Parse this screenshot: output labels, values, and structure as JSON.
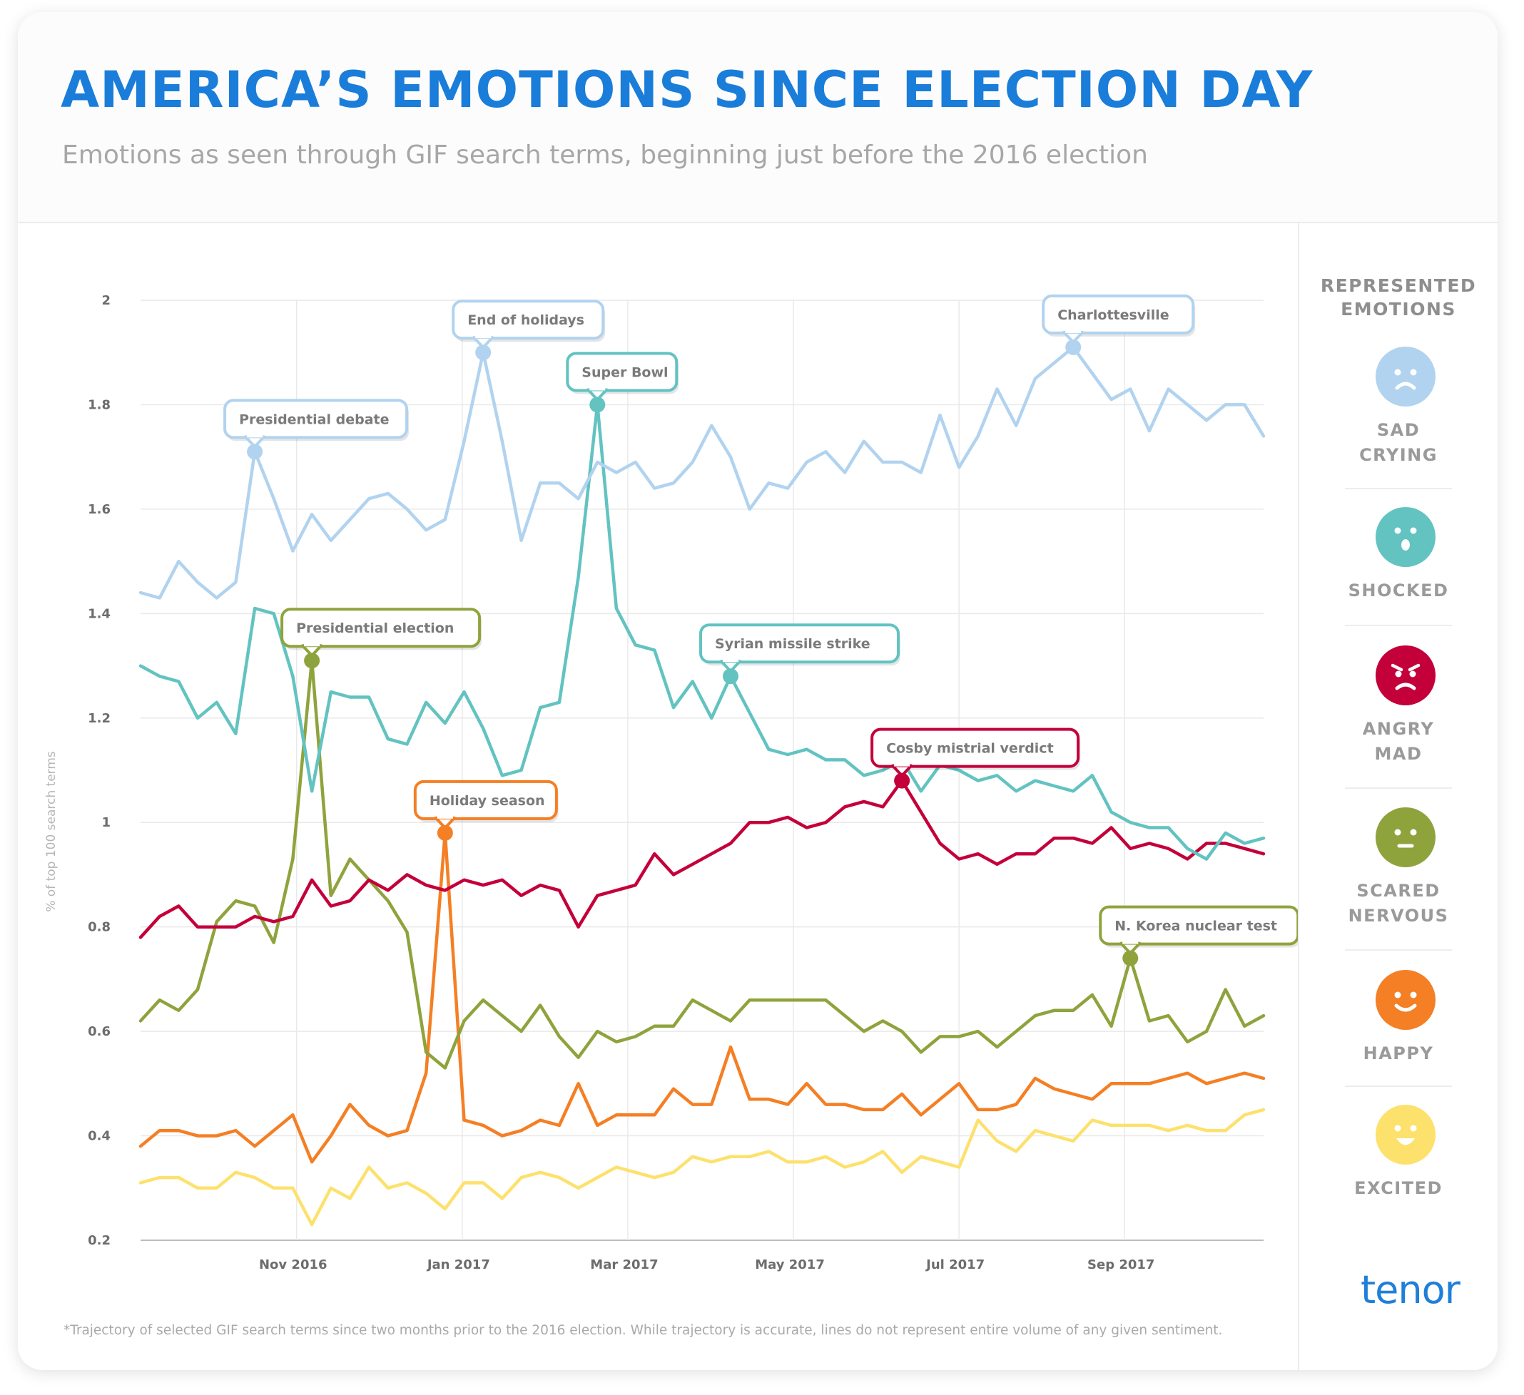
{
  "title": "AMERICA’S EMOTIONS SINCE ELECTION DAY",
  "subtitle": "Emotions as seen through GIF search terms, beginning just before the 2016 election",
  "footnote": "*Trajectory of selected GIF search terms since two months prior to the 2016 election. While trajectory is accurate, lines do not represent entire volume of any given sentiment.",
  "brand": "tenor",
  "legend": {
    "title_lines": [
      "REPRESENTED",
      "EMOTIONS"
    ],
    "items": [
      {
        "lines": [
          "SAD",
          "CRYING"
        ],
        "color": "#b1d3ef",
        "face": "sad"
      },
      {
        "lines": [
          "SHOCKED"
        ],
        "color": "#62c3c1",
        "face": "shocked"
      },
      {
        "lines": [
          "ANGRY",
          "MAD"
        ],
        "color": "#c4003a",
        "face": "angry"
      },
      {
        "lines": [
          "SCARED",
          "NERVOUS"
        ],
        "color": "#8fa33d",
        "face": "neutral"
      },
      {
        "lines": [
          "HAPPY"
        ],
        "color": "#f47f24",
        "face": "happy"
      },
      {
        "lines": [
          "EXCITED"
        ],
        "color": "#fde16d",
        "face": "excited"
      }
    ]
  },
  "chart_data": {
    "type": "line",
    "ylabel": "% of top 100 search terms",
    "xlabel": "",
    "ylim": [
      0.2,
      2
    ],
    "yticks": [
      "2",
      "1.8",
      "1.6",
      "1.4",
      "1.2",
      "1",
      "0.8",
      "0.6",
      "0.4",
      "0.2"
    ],
    "xticks": [
      {
        "label": "Nov 2016",
        "x": 8.2
      },
      {
        "label": "Jan 2017",
        "x": 16.9
      },
      {
        "label": "Mar 2017",
        "x": 25.6
      },
      {
        "label": "May 2017",
        "x": 34.3
      },
      {
        "label": "Jul 2017",
        "x": 43.0
      },
      {
        "label": "Sep 2017",
        "x": 51.7
      }
    ],
    "grid": true,
    "series": [
      {
        "name": "SAD CRYING",
        "color": "#b1d3ef",
        "values": [
          1.44,
          1.43,
          1.5,
          1.46,
          1.43,
          1.46,
          1.71,
          1.62,
          1.52,
          1.59,
          1.54,
          1.58,
          1.62,
          1.63,
          1.6,
          1.56,
          1.58,
          1.73,
          1.9,
          1.73,
          1.54,
          1.65,
          1.65,
          1.62,
          1.69,
          1.67,
          1.69,
          1.64,
          1.65,
          1.69,
          1.76,
          1.7,
          1.6,
          1.65,
          1.64,
          1.69,
          1.71,
          1.67,
          1.73,
          1.69,
          1.69,
          1.67,
          1.78,
          1.68,
          1.74,
          1.83,
          1.76,
          1.85,
          1.88,
          1.91,
          1.86,
          1.81,
          1.83,
          1.75,
          1.83,
          1.8,
          1.77,
          1.8,
          1.8,
          1.74
        ]
      },
      {
        "name": "SHOCKED",
        "color": "#62c3c1",
        "values": [
          1.3,
          1.28,
          1.27,
          1.2,
          1.23,
          1.17,
          1.41,
          1.4,
          1.28,
          1.06,
          1.25,
          1.24,
          1.24,
          1.16,
          1.15,
          1.23,
          1.19,
          1.25,
          1.18,
          1.09,
          1.1,
          1.22,
          1.23,
          1.47,
          1.8,
          1.41,
          1.34,
          1.33,
          1.22,
          1.27,
          1.2,
          1.28,
          1.21,
          1.14,
          1.13,
          1.14,
          1.12,
          1.12,
          1.09,
          1.1,
          1.12,
          1.06,
          1.11,
          1.1,
          1.08,
          1.09,
          1.06,
          1.08,
          1.07,
          1.06,
          1.09,
          1.02,
          1.0,
          0.99,
          0.99,
          0.95,
          0.93,
          0.98,
          0.96,
          0.97
        ]
      },
      {
        "name": "ANGRY MAD",
        "color": "#c4003a",
        "values": [
          0.78,
          0.82,
          0.84,
          0.8,
          0.8,
          0.8,
          0.82,
          0.81,
          0.82,
          0.89,
          0.84,
          0.85,
          0.89,
          0.87,
          0.9,
          0.88,
          0.87,
          0.89,
          0.88,
          0.89,
          0.86,
          0.88,
          0.87,
          0.8,
          0.86,
          0.87,
          0.88,
          0.94,
          0.9,
          0.92,
          0.94,
          0.96,
          1.0,
          1.0,
          1.01,
          0.99,
          1.0,
          1.03,
          1.04,
          1.03,
          1.08,
          1.02,
          0.96,
          0.93,
          0.94,
          0.92,
          0.94,
          0.94,
          0.97,
          0.97,
          0.96,
          0.99,
          0.95,
          0.96,
          0.95,
          0.93,
          0.96,
          0.96,
          0.95,
          0.94
        ]
      },
      {
        "name": "SCARED NERVOUS",
        "color": "#8fa33d",
        "values": [
          0.62,
          0.66,
          0.64,
          0.68,
          0.81,
          0.85,
          0.84,
          0.77,
          0.93,
          1.31,
          0.86,
          0.93,
          0.89,
          0.85,
          0.79,
          0.56,
          0.53,
          0.62,
          0.66,
          0.63,
          0.6,
          0.65,
          0.59,
          0.55,
          0.6,
          0.58,
          0.59,
          0.61,
          0.61,
          0.66,
          0.64,
          0.62,
          0.66,
          0.66,
          0.66,
          0.66,
          0.66,
          0.63,
          0.6,
          0.62,
          0.6,
          0.56,
          0.59,
          0.59,
          0.6,
          0.57,
          0.6,
          0.63,
          0.64,
          0.64,
          0.67,
          0.61,
          0.74,
          0.62,
          0.63,
          0.58,
          0.6,
          0.68,
          0.61,
          0.63
        ]
      },
      {
        "name": "HAPPY",
        "color": "#f47f24",
        "values": [
          0.38,
          0.41,
          0.41,
          0.4,
          0.4,
          0.41,
          0.38,
          0.41,
          0.44,
          0.35,
          0.4,
          0.46,
          0.42,
          0.4,
          0.41,
          0.52,
          0.98,
          0.43,
          0.42,
          0.4,
          0.41,
          0.43,
          0.42,
          0.5,
          0.42,
          0.44,
          0.44,
          0.44,
          0.49,
          0.46,
          0.46,
          0.57,
          0.47,
          0.47,
          0.46,
          0.5,
          0.46,
          0.46,
          0.45,
          0.45,
          0.48,
          0.44,
          0.47,
          0.5,
          0.45,
          0.45,
          0.46,
          0.51,
          0.49,
          0.48,
          0.47,
          0.5,
          0.5,
          0.5,
          0.51,
          0.52,
          0.5,
          0.51,
          0.52,
          0.51
        ]
      },
      {
        "name": "EXCITED",
        "color": "#fde16d",
        "values": [
          0.31,
          0.32,
          0.32,
          0.3,
          0.3,
          0.33,
          0.32,
          0.3,
          0.3,
          0.23,
          0.3,
          0.28,
          0.34,
          0.3,
          0.31,
          0.29,
          0.26,
          0.31,
          0.31,
          0.28,
          0.32,
          0.33,
          0.32,
          0.3,
          0.32,
          0.34,
          0.33,
          0.32,
          0.33,
          0.36,
          0.35,
          0.36,
          0.36,
          0.37,
          0.35,
          0.35,
          0.36,
          0.34,
          0.35,
          0.37,
          0.33,
          0.36,
          0.35,
          0.34,
          0.43,
          0.39,
          0.37,
          0.41,
          0.4,
          0.39,
          0.43,
          0.42,
          0.42,
          0.42,
          0.41,
          0.42,
          0.41,
          0.41,
          0.44,
          0.45
        ]
      }
    ],
    "annotations": [
      {
        "text": "Presidential debate",
        "series": "SAD CRYING",
        "x": 6,
        "y": 1.71,
        "color": "#b1d3ef"
      },
      {
        "text": "End of holidays",
        "series": "SAD CRYING",
        "x": 18,
        "y": 1.9,
        "color": "#b1d3ef"
      },
      {
        "text": "Charlottesville",
        "series": "SAD CRYING",
        "x": 49,
        "y": 1.91,
        "color": "#b1d3ef"
      },
      {
        "text": "Super Bowl",
        "series": "SHOCKED",
        "x": 24,
        "y": 1.8,
        "color": "#62c3c1"
      },
      {
        "text": "Syrian missile strike",
        "series": "SHOCKED",
        "x": 31,
        "y": 1.28,
        "color": "#62c3c1"
      },
      {
        "text": "Presidential election",
        "series": "SCARED NERVOUS",
        "x": 9,
        "y": 1.31,
        "color": "#8fa33d"
      },
      {
        "text": "Holiday season",
        "series": "HAPPY",
        "x": 16,
        "y": 0.98,
        "color": "#f47f24"
      },
      {
        "text": "Cosby mistrial verdict",
        "series": "ANGRY MAD",
        "x": 40,
        "y": 1.08,
        "color": "#c4003a"
      },
      {
        "text": "N. Korea nuclear test",
        "series": "SCARED NERVOUS",
        "x": 52,
        "y": 0.74,
        "color": "#8fa33d"
      }
    ]
  }
}
